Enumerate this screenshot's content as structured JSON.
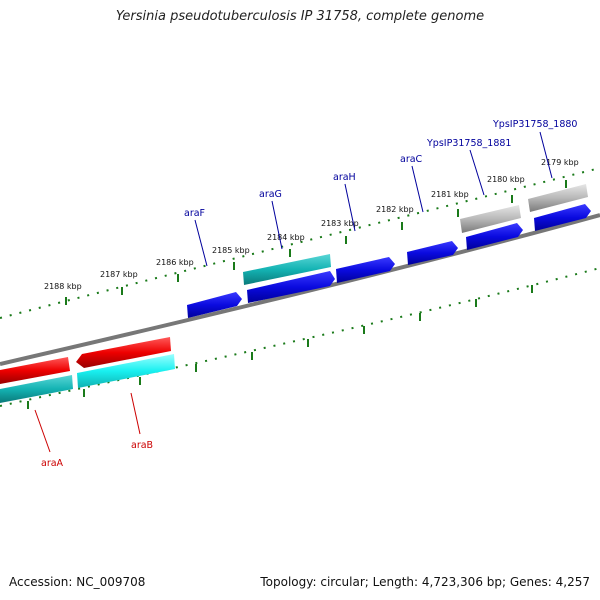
{
  "title": "Yersinia pseudotuberculosis IP 31758, complete genome",
  "accession_text": "Accession: NC_009708",
  "summary_text": "Topology: circular; Length: 4,723,306 bp; Genes: 4,257",
  "scale_ticks": [
    "2188 kbp",
    "2187 kbp",
    "2186 kbp",
    "2185 kbp",
    "2184 kbp",
    "2183 kbp",
    "2182 kbp",
    "2181 kbp",
    "2180 kbp",
    "2179 kbp"
  ],
  "genes": [
    {
      "name": "araA",
      "color": "#cc0000"
    },
    {
      "name": "araB",
      "color": "#cc0000"
    },
    {
      "name": "araF",
      "color": "#00009c"
    },
    {
      "name": "araG",
      "color": "#00009c"
    },
    {
      "name": "araH",
      "color": "#00009c"
    },
    {
      "name": "araC",
      "color": "#00009c"
    },
    {
      "name": "YpsIP31758_1881",
      "color": "#00009c"
    },
    {
      "name": "YpsIP31758_1880",
      "color": "#00009c"
    }
  ],
  "colors": {
    "forward_cds": "#0a0adf",
    "reverse_cds": "#ee0000",
    "cog_teal": "#14b3b3",
    "cog_cyan": "#19f0f0",
    "cog_gray": "#b8b8b8",
    "backbone": "#777777",
    "ruler": "#1a7a1a"
  }
}
